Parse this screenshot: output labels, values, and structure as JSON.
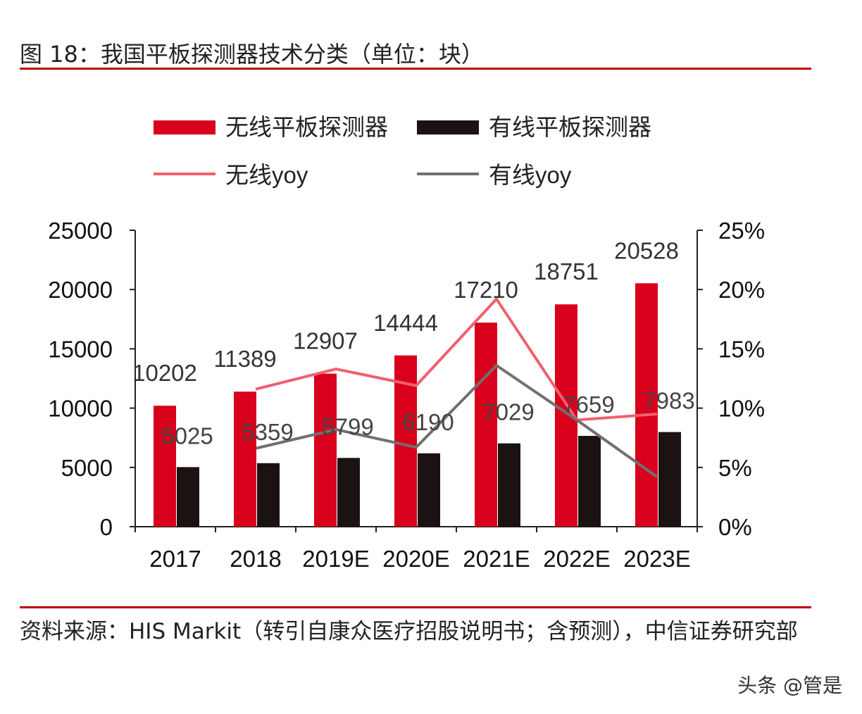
{
  "title": "图 18：我国平板探测器技术分类（单位：块）",
  "source": "资料来源：HIS Markit（转引自康众医疗招股说明书；含预测），中信证券研究部",
  "watermark": "头条 @管是",
  "chart_data": {
    "type": "bar+line",
    "categories": [
      "2017",
      "2018",
      "2019E",
      "2020E",
      "2021E",
      "2022E",
      "2023E"
    ],
    "series": [
      {
        "name": "无线平板探测器",
        "type": "bar",
        "axis": "left",
        "color": "#d9001b",
        "values": [
          10202,
          11389,
          12907,
          14444,
          17210,
          18751,
          20528
        ]
      },
      {
        "name": "有线平板探测器",
        "type": "bar",
        "axis": "left",
        "color": "#1a1311",
        "values": [
          5025,
          5359,
          5799,
          6190,
          7029,
          7659,
          7983
        ]
      },
      {
        "name": "无线yoy",
        "type": "line",
        "axis": "right",
        "color": "#f0606e",
        "values": [
          null,
          11.6,
          13.3,
          11.9,
          19.2,
          9.0,
          9.5
        ]
      },
      {
        "name": "有线yoy",
        "type": "line",
        "axis": "right",
        "color": "#707070",
        "values": [
          null,
          6.6,
          8.2,
          6.7,
          13.6,
          9.0,
          4.2
        ]
      }
    ],
    "left_axis": {
      "ylim": [
        0,
        25000
      ],
      "ticks": [
        "0",
        "5000",
        "10000",
        "15000",
        "20000",
        "25000"
      ]
    },
    "right_axis": {
      "ylim": [
        0,
        25
      ],
      "ticks": [
        "0%",
        "5%",
        "10%",
        "15%",
        "20%",
        "25%"
      ]
    },
    "legend_placement": "top",
    "grid": false
  }
}
